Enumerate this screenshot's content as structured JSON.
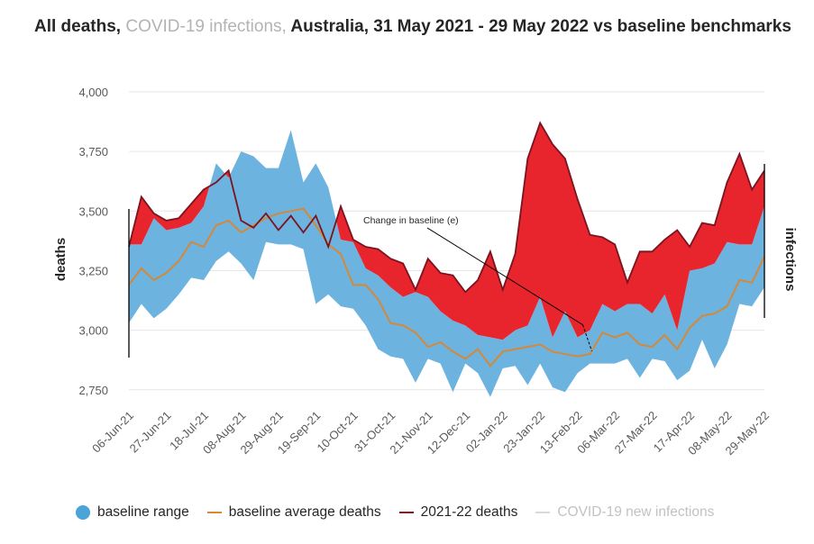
{
  "title": {
    "part1": "All deaths,",
    "part2": "COVID-19 infections,",
    "part3": "Australia, 31 May 2021 - 29 May 2022 vs baseline benchmarks"
  },
  "colors": {
    "baseline_range": "#6db3df",
    "baseline_average": "#d4883a",
    "deaths": "#7a1420",
    "excess_fill": "#e8242c",
    "covid": "#d9d9d9",
    "axis": "#000000",
    "grid": "#e6e6e6"
  },
  "legend": [
    {
      "label": "baseline range",
      "kind": "dot",
      "color": "#4aa3d9"
    },
    {
      "label": "baseline average deaths",
      "kind": "line",
      "color": "#d4883a"
    },
    {
      "label": "2021-22 deaths",
      "kind": "line",
      "color": "#7a1420"
    },
    {
      "label": "COVID-19 new infections",
      "kind": "line",
      "color": "#d9d9d9",
      "muted": true
    }
  ],
  "chart_data": {
    "type": "area",
    "xlabel": "",
    "ylabel": "deaths",
    "y2label": "infections",
    "ylim": [
      2700,
      4000
    ],
    "yticks": [
      2750,
      3000,
      3250,
      3500,
      3750,
      4000
    ],
    "ytick_labels": [
      "2,750",
      "3,000",
      "3,250",
      "3,500",
      "3,750",
      "4,000"
    ],
    "x_tick_labels": [
      "06-Jun-21",
      "27-Jun-21",
      "18-Jul-21",
      "08-Aug-21",
      "29-Aug-21",
      "19-Sep-21",
      "10-Oct-21",
      "31-Oct-21",
      "21-Nov-21",
      "12-Dec-21",
      "02-Jan-22",
      "23-Jan-22",
      "13-Feb-22",
      "06-Mar-22",
      "27-Mar-22",
      "17-Apr-22",
      "08-May-22",
      "29-May-22"
    ],
    "x_tick_every": 3,
    "annotation": "Change in baseline (e)",
    "annotation_week": 37,
    "series": [
      {
        "name": "baseline range upper",
        "values": [
          3360,
          3360,
          3470,
          3420,
          3430,
          3450,
          3520,
          3700,
          3640,
          3750,
          3730,
          3680,
          3680,
          3840,
          3620,
          3700,
          3600,
          3380,
          3370,
          3260,
          3230,
          3180,
          3140,
          3160,
          3140,
          3080,
          3040,
          3020,
          2980,
          2970,
          2960,
          3000,
          3020,
          3140,
          2970,
          3080,
          2970,
          3000,
          3110,
          3080,
          3110,
          3110,
          3070,
          3150,
          3000,
          3250,
          3260,
          3280,
          3370,
          3360,
          3360,
          3520
        ]
      },
      {
        "name": "baseline range lower",
        "values": [
          3030,
          3110,
          3050,
          3090,
          3150,
          3220,
          3210,
          3290,
          3330,
          3280,
          3210,
          3370,
          3360,
          3360,
          3340,
          3110,
          3150,
          3100,
          3090,
          3020,
          2920,
          2890,
          2880,
          2780,
          2880,
          2860,
          2740,
          2860,
          2820,
          2720,
          2840,
          2850,
          2770,
          2860,
          2760,
          2740,
          2820,
          2860,
          2860,
          2860,
          2880,
          2800,
          2880,
          2870,
          2790,
          2830,
          2960,
          2840,
          2940,
          3110,
          3100,
          3180
        ]
      },
      {
        "name": "baseline average deaths",
        "values": [
          3190,
          3260,
          3210,
          3240,
          3290,
          3370,
          3350,
          3440,
          3460,
          3410,
          3440,
          3470,
          3490,
          3500,
          3510,
          3440,
          3360,
          3320,
          3190,
          3190,
          3130,
          3030,
          3020,
          2990,
          2930,
          2950,
          2910,
          2880,
          2920,
          2850,
          2910,
          2920,
          2930,
          2940,
          2910,
          2900,
          2890,
          2900,
          2990,
          2970,
          2990,
          2940,
          2930,
          2980,
          2920,
          3010,
          3060,
          3070,
          3100,
          3210,
          3200,
          3310
        ]
      },
      {
        "name": "2021-22 deaths",
        "values": [
          3350,
          3560,
          3490,
          3460,
          3470,
          3530,
          3590,
          3620,
          3670,
          3460,
          3430,
          3490,
          3420,
          3480,
          3410,
          3480,
          3350,
          3520,
          3380,
          3350,
          3340,
          3300,
          3280,
          3170,
          3300,
          3240,
          3230,
          3160,
          3210,
          3330,
          3170,
          3320,
          3720,
          3870,
          3780,
          3720,
          3550,
          3400,
          3390,
          3360,
          3200,
          3330,
          3330,
          3380,
          3420,
          3350,
          3450,
          3440,
          3620,
          3740,
          3590,
          3670
        ]
      }
    ]
  }
}
